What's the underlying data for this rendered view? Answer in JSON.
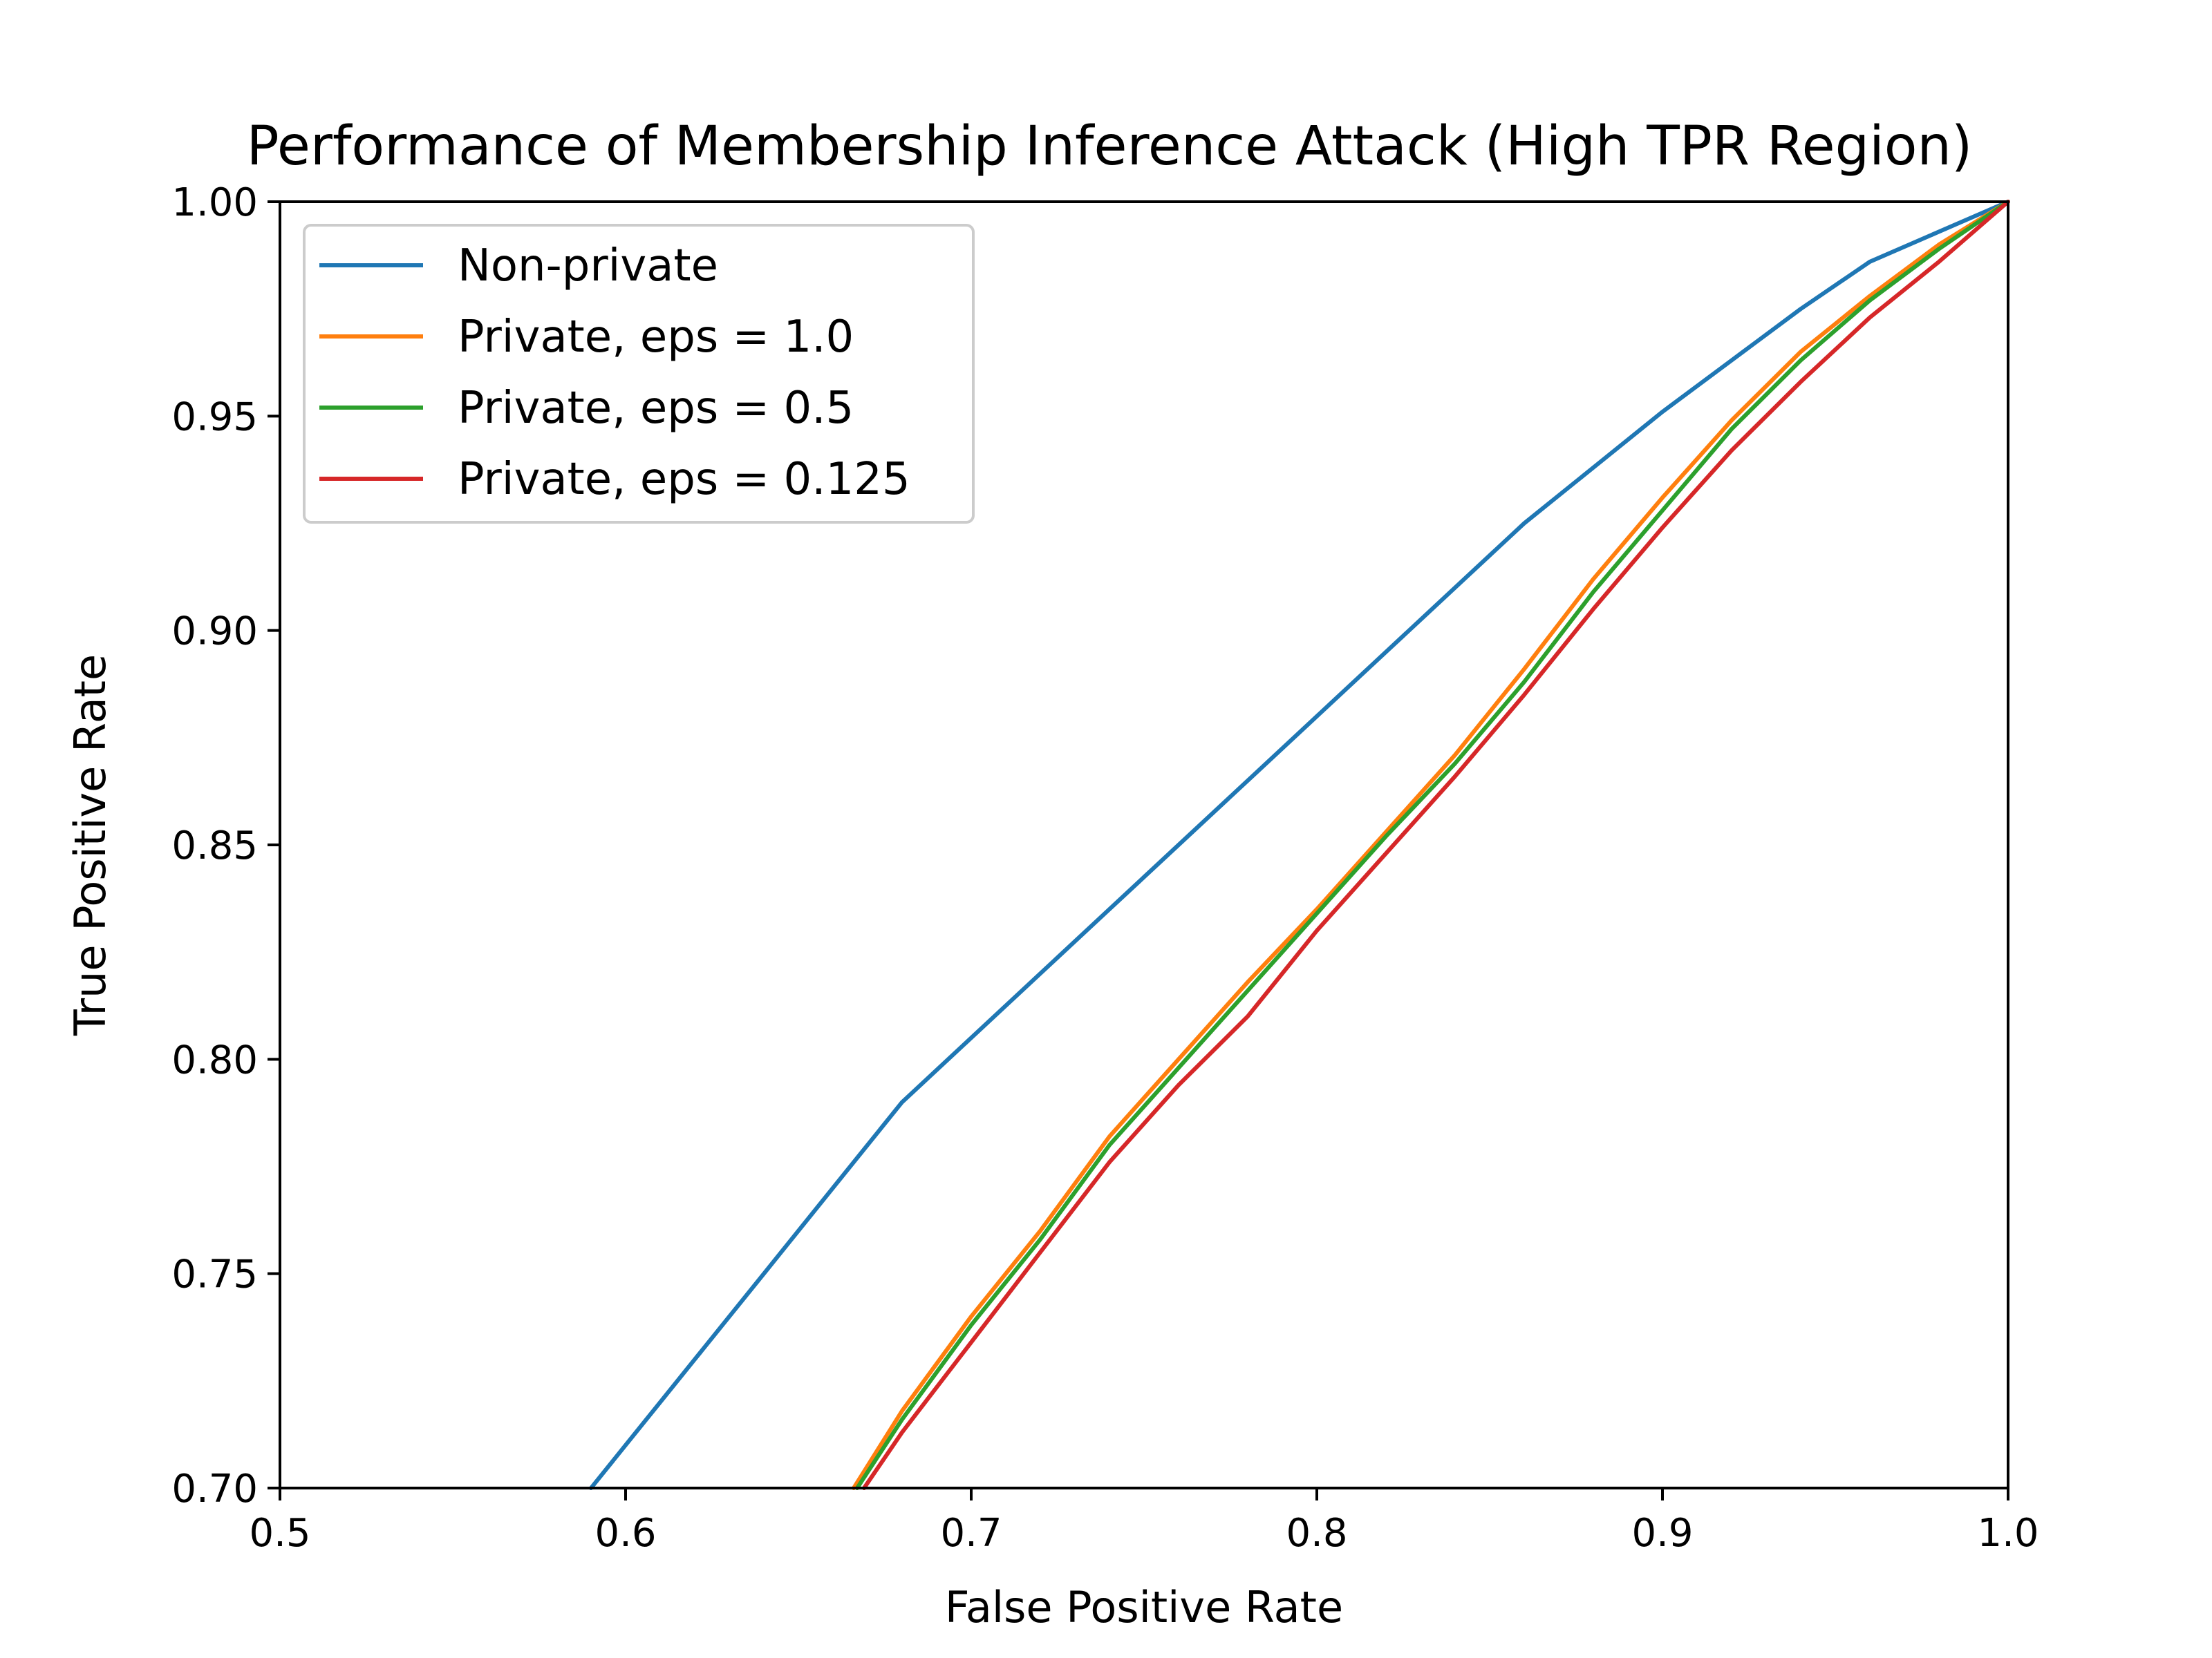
{
  "chart_data": {
    "type": "line",
    "title": "Performance of Membership Inference Attack (High TPR Region)",
    "xlabel": "False Positive Rate",
    "ylabel": "True Positive Rate",
    "xlim": [
      0.5,
      1.0
    ],
    "ylim": [
      0.7,
      1.0
    ],
    "xticks": [
      "0.5",
      "0.6",
      "0.7",
      "0.8",
      "0.9",
      "1.0"
    ],
    "yticks": [
      "0.70",
      "0.75",
      "0.80",
      "0.85",
      "0.90",
      "0.95",
      "1.00"
    ],
    "grid": false,
    "legend_position": "upper-left",
    "series": [
      {
        "name": "Non-private",
        "color": "#1f77b4",
        "x": [
          0.59,
          0.6,
          0.62,
          0.64,
          0.66,
          0.68,
          0.7,
          0.72,
          0.74,
          0.76,
          0.78,
          0.8,
          0.82,
          0.84,
          0.86,
          0.88,
          0.9,
          0.92,
          0.94,
          0.96,
          0.98,
          1.0
        ],
        "y": [
          0.7,
          0.71,
          0.73,
          0.75,
          0.77,
          0.79,
          0.805,
          0.82,
          0.835,
          0.85,
          0.865,
          0.88,
          0.895,
          0.91,
          0.925,
          0.938,
          0.951,
          0.963,
          0.975,
          0.986,
          0.993,
          1.0
        ]
      },
      {
        "name": "Private, eps = 1.0",
        "color": "#ff7f0e",
        "x": [
          0.666,
          0.68,
          0.7,
          0.72,
          0.74,
          0.76,
          0.78,
          0.8,
          0.82,
          0.84,
          0.86,
          0.88,
          0.9,
          0.92,
          0.94,
          0.96,
          0.98,
          1.0
        ],
        "y": [
          0.7,
          0.718,
          0.74,
          0.76,
          0.782,
          0.8,
          0.818,
          0.835,
          0.853,
          0.871,
          0.891,
          0.912,
          0.931,
          0.949,
          0.965,
          0.978,
          0.99,
          1.0
        ]
      },
      {
        "name": "Private, eps = 0.5",
        "color": "#2ca02c",
        "x": [
          0.667,
          0.68,
          0.7,
          0.72,
          0.74,
          0.76,
          0.78,
          0.8,
          0.82,
          0.84,
          0.86,
          0.88,
          0.9,
          0.92,
          0.94,
          0.96,
          0.98,
          1.0
        ],
        "y": [
          0.7,
          0.716,
          0.738,
          0.758,
          0.78,
          0.798,
          0.816,
          0.834,
          0.852,
          0.869,
          0.888,
          0.909,
          0.928,
          0.947,
          0.963,
          0.977,
          0.989,
          1.0
        ]
      },
      {
        "name": "Private, eps = 0.125",
        "color": "#d62728",
        "x": [
          0.669,
          0.68,
          0.7,
          0.72,
          0.74,
          0.76,
          0.78,
          0.8,
          0.82,
          0.84,
          0.86,
          0.88,
          0.9,
          0.92,
          0.94,
          0.96,
          0.98,
          1.0
        ],
        "y": [
          0.7,
          0.713,
          0.734,
          0.755,
          0.776,
          0.794,
          0.81,
          0.83,
          0.848,
          0.866,
          0.885,
          0.905,
          0.924,
          0.942,
          0.958,
          0.973,
          0.986,
          1.0
        ]
      }
    ]
  }
}
